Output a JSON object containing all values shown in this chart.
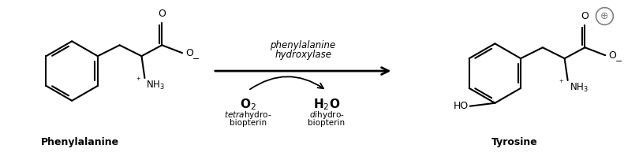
{
  "bg_color": "#ffffff",
  "fig_w": 7.91,
  "fig_h": 1.98,
  "enzyme_line1": "phenylalanine",
  "enzyme_line2": "hydroxylase",
  "o2_label": "O$_2$",
  "h2o_label": "H$_2$O",
  "tetra_line1": "tetrahydro-",
  "tetra_line2": "biopterin",
  "dihydro_line1": "dihydro-",
  "dihydro_line2": "biopterin",
  "phe_label": "Phenylalanine",
  "tyr_label": "Tyrosine"
}
